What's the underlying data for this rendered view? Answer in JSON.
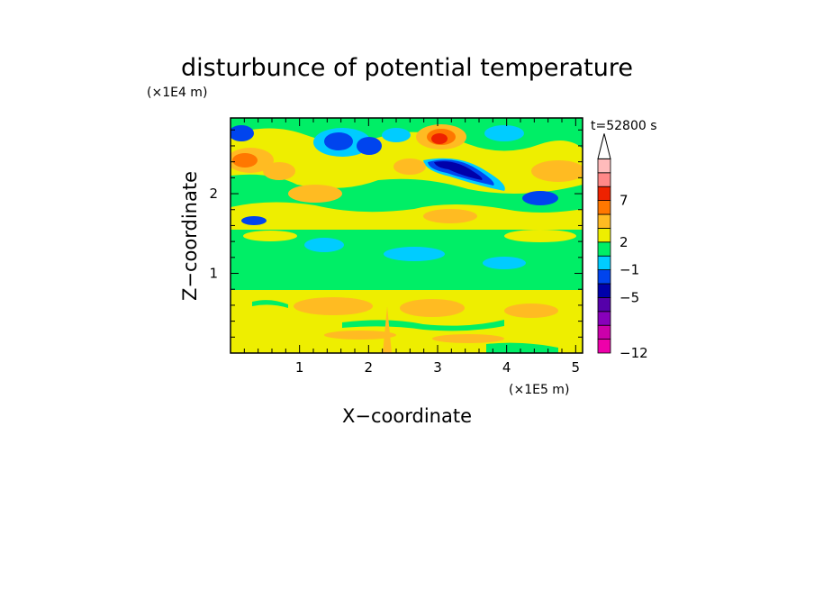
{
  "chart_data": {
    "type": "heatmap",
    "title": "disturbunce of potential temperature",
    "time_label": "t=52800 s",
    "xlabel": "X−coordinate",
    "ylabel": "Z−coordinate",
    "x_unit": "(×1E5 m)",
    "y_unit": "(×1E4 m)",
    "xlim": [
      0,
      5.1
    ],
    "ylim": [
      0,
      2.95
    ],
    "x_ticks": [
      "1",
      "2",
      "3",
      "4",
      "5"
    ],
    "y_ticks": [
      "1",
      "2"
    ],
    "colorbar": {
      "tick_labels": [
        "7",
        "2",
        "−1",
        "−5",
        "−12"
      ],
      "colors": [
        "#ee00aa",
        "#cc00aa",
        "#8800bb",
        "#5500aa",
        "#0000aa",
        "#0044ee",
        "#00ccff",
        "#00ee66",
        "#eeee00",
        "#ffbb22",
        "#ff7700",
        "#ee2200",
        "#ff8888",
        "#ffbbbb"
      ],
      "extend": "max"
    },
    "field_description_layers": [
      {
        "z_range": [
          0,
          0.85
        ],
        "dominant": "yellow",
        "patches": "orange",
        "note": "lower layer mostly +1 to +2 with orange blobs and green streaks"
      },
      {
        "z_range": [
          0.85,
          1.6
        ],
        "dominant": "green",
        "patches": "cyan",
        "note": "middle band near 0 to -1"
      },
      {
        "z_range": [
          1.6,
          2.95
        ],
        "dominant": "yellow/orange/green mix",
        "patches": "blue, dark blue, red",
        "note": "upper layer with strong anomalies; min around x=3.3, z=2.4; max near x=3.1, z=2.75"
      }
    ]
  }
}
